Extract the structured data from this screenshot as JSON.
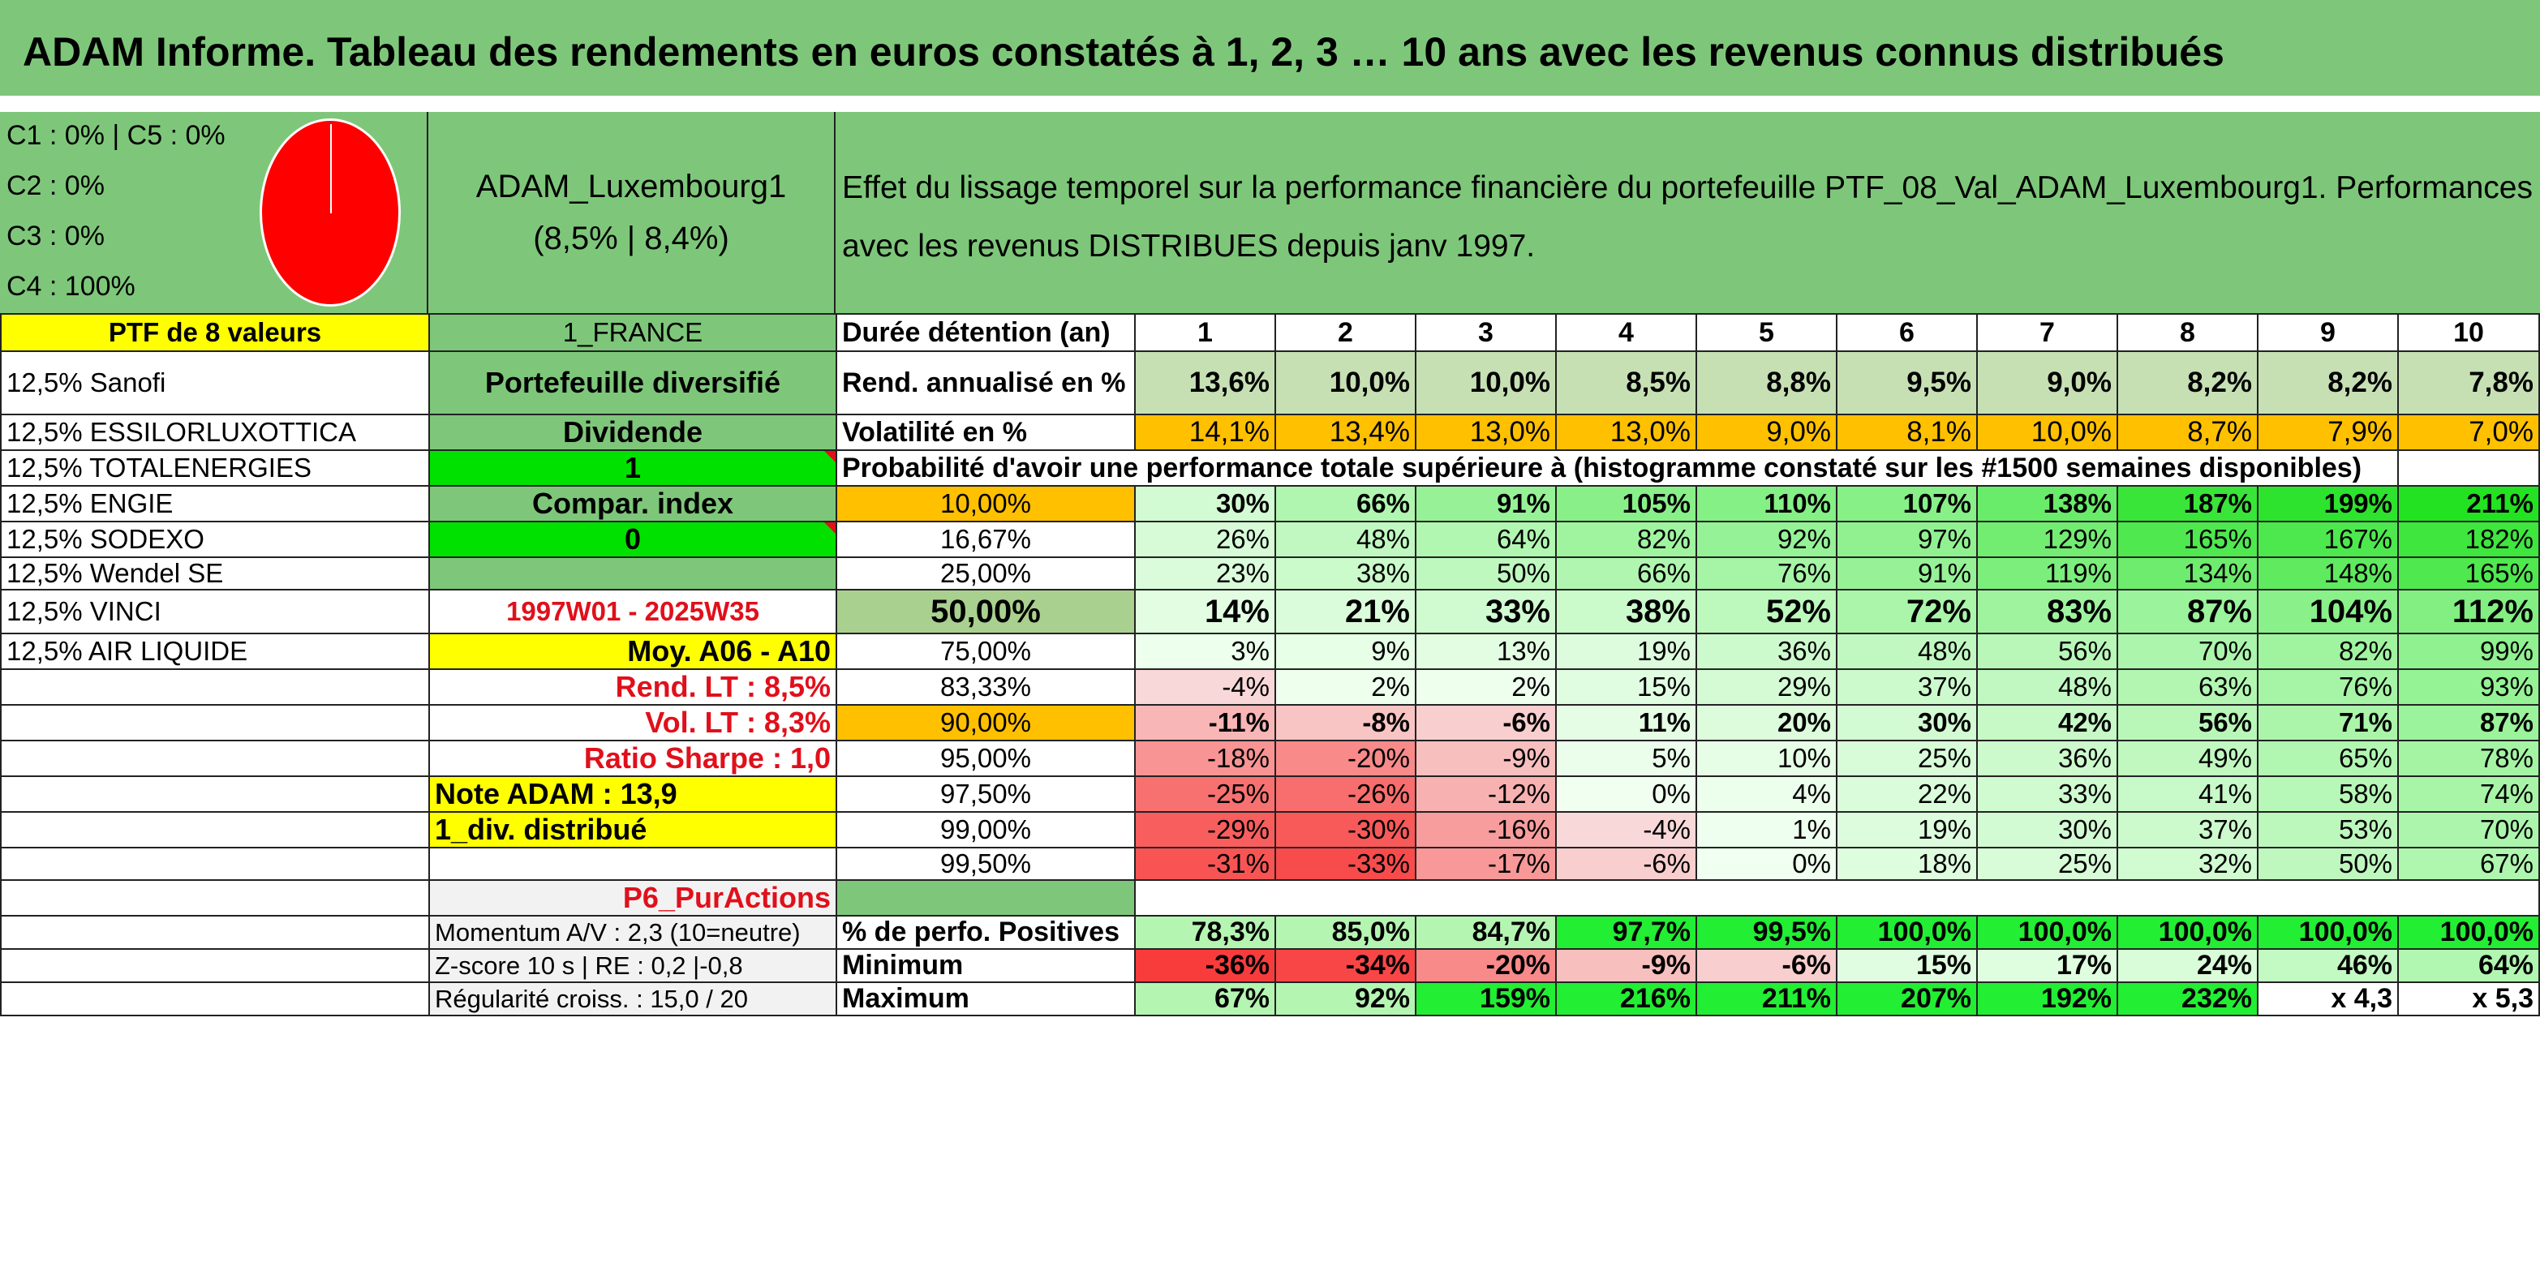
{
  "title": "ADAM Informe. Tableau des rendements en euros constatés à 1, 2, 3 … 10 ans avec les revenus connus distribués",
  "legend": [
    "C1 : 0% | C5 : 0%",
    "C2 : 0%",
    "C3 : 0%",
    "C4 : 100%"
  ],
  "pie_color": "#ff0000",
  "fund": {
    "name": "ADAM_Luxembourg1",
    "rates": "(8,5% | 8,4%)"
  },
  "description": "Effet du lissage temporel sur la performance financière du portefeuille PTF_08_Val_ADAM_Luxembourg1. Performances avec les revenus DISTRIBUES depuis janv 1997.",
  "col0": [
    "PTF de 8 valeurs",
    "12,5% Sanofi",
    "12,5% ESSILORLUXOTTICA",
    "12,5% TOTALENERGIES",
    "12,5% ENGIE",
    "12,5% SODEXO",
    "12,5% Wendel SE",
    "12,5% VINCI",
    "12,5% AIR LIQUIDE"
  ],
  "col1": [
    "1_FRANCE",
    "Portefeuille diversifié",
    "Dividende",
    "1",
    "Compar. index",
    "0",
    "",
    "1997W01 - 2025W35",
    "Moy. A06 - A10",
    "Rend. LT : 8,5%",
    "Vol. LT : 8,3%",
    "Ratio Sharpe : 1,0",
    "Note ADAM : 13,9",
    "1_div. distribué",
    "",
    "P6_PurActions",
    "Momentum A/V : 2,3 (10=neutre)",
    "Z-score 10 s | RE : 0,2 |-0,8",
    "Régularité croiss. : 15,0 / 20"
  ],
  "header_row": {
    "label": "Durée détention (an)",
    "years": [
      "1",
      "2",
      "3",
      "4",
      "5",
      "6",
      "7",
      "8",
      "9",
      "10"
    ]
  },
  "rend": {
    "label": "Rend. annualisé en %",
    "values": [
      "13,6%",
      "10,0%",
      "10,0%",
      "8,5%",
      "8,8%",
      "9,5%",
      "9,0%",
      "8,2%",
      "8,2%",
      "7,8%"
    ]
  },
  "vol": {
    "label": "Volatilité en %",
    "values": [
      "14,1%",
      "13,4%",
      "13,0%",
      "13,0%",
      "9,0%",
      "8,1%",
      "10,0%",
      "8,7%",
      "7,9%",
      "7,0%"
    ]
  },
  "proba_title": "Probabilité d'avoir une performance totale supérieure à (histogramme constaté sur les #1500 semaines disponibles)",
  "prob_rows": [
    {
      "p": "10,00%",
      "v": [
        "30%",
        "66%",
        "91%",
        "105%",
        "110%",
        "107%",
        "138%",
        "187%",
        "199%",
        "211%"
      ]
    },
    {
      "p": "16,67%",
      "v": [
        "26%",
        "48%",
        "64%",
        "82%",
        "92%",
        "97%",
        "129%",
        "165%",
        "167%",
        "182%"
      ]
    },
    {
      "p": "25,00%",
      "v": [
        "23%",
        "38%",
        "50%",
        "66%",
        "76%",
        "91%",
        "119%",
        "134%",
        "148%",
        "165%"
      ]
    },
    {
      "p": "50,00%",
      "v": [
        "14%",
        "21%",
        "33%",
        "38%",
        "52%",
        "72%",
        "83%",
        "87%",
        "104%",
        "112%"
      ]
    },
    {
      "p": "75,00%",
      "v": [
        "3%",
        "9%",
        "13%",
        "19%",
        "36%",
        "48%",
        "56%",
        "70%",
        "82%",
        "99%"
      ]
    },
    {
      "p": "83,33%",
      "v": [
        "-4%",
        "2%",
        "2%",
        "15%",
        "29%",
        "37%",
        "48%",
        "63%",
        "76%",
        "93%"
      ]
    },
    {
      "p": "90,00%",
      "v": [
        "-11%",
        "-8%",
        "-6%",
        "11%",
        "20%",
        "30%",
        "42%",
        "56%",
        "71%",
        "87%"
      ]
    },
    {
      "p": "95,00%",
      "v": [
        "-18%",
        "-20%",
        "-9%",
        "5%",
        "10%",
        "25%",
        "36%",
        "49%",
        "65%",
        "78%"
      ]
    },
    {
      "p": "97,50%",
      "v": [
        "-25%",
        "-26%",
        "-12%",
        "0%",
        "4%",
        "22%",
        "33%",
        "41%",
        "58%",
        "74%"
      ]
    },
    {
      "p": "99,00%",
      "v": [
        "-29%",
        "-30%",
        "-16%",
        "-4%",
        "1%",
        "19%",
        "30%",
        "37%",
        "53%",
        "70%"
      ]
    },
    {
      "p": "99,50%",
      "v": [
        "-31%",
        "-33%",
        "-17%",
        "-6%",
        "0%",
        "18%",
        "25%",
        "32%",
        "50%",
        "67%"
      ]
    }
  ],
  "pos": {
    "label": "% de perfo. Positives",
    "values": [
      "78,3%",
      "85,0%",
      "84,7%",
      "97,7%",
      "99,5%",
      "100,0%",
      "100,0%",
      "100,0%",
      "100,0%",
      "100,0%"
    ]
  },
  "min": {
    "label": "Minimum",
    "values": [
      "-36%",
      "-34%",
      "-20%",
      "-9%",
      "-6%",
      "15%",
      "17%",
      "24%",
      "46%",
      "64%"
    ]
  },
  "max": {
    "label": "Maximum",
    "values": [
      "67%",
      "92%",
      "159%",
      "216%",
      "211%",
      "207%",
      "192%",
      "232%",
      "x 4,3",
      "x 5,3"
    ]
  },
  "colors": {
    "header_green": "#7ec77a",
    "bright_green": "#00e100",
    "yellow": "#ffff00",
    "orange": "#ffc000",
    "red_text": "#e0101b"
  }
}
